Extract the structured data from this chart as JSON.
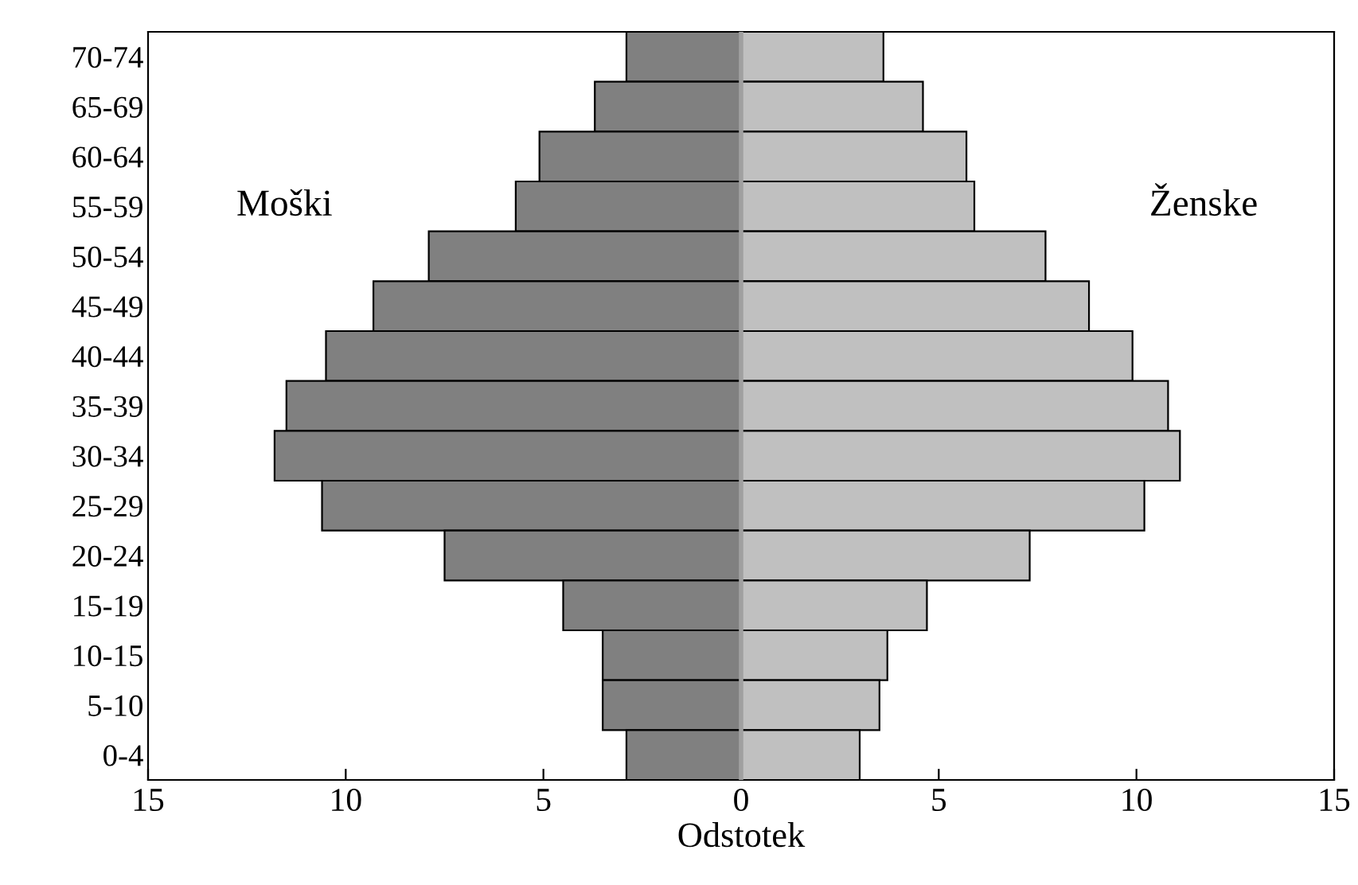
{
  "chart_data": {
    "type": "bar",
    "orientation": "horizontal",
    "stacked": true,
    "xlabel": "Odstotek",
    "categories": [
      "70-74",
      "65-69",
      "60-64",
      "55-59",
      "50-54",
      "45-49",
      "40-44",
      "35-39",
      "30-34",
      "25-29",
      "20-24",
      "15-19",
      "10-15",
      "5-10",
      "0-4"
    ],
    "series": [
      {
        "name": "Moški",
        "color": "#808080",
        "values": [
          -2.9,
          -3.7,
          -5.1,
          -5.7,
          -7.9,
          -9.3,
          -10.5,
          -11.5,
          -11.8,
          -10.6,
          -7.5,
          -4.5,
          -3.5,
          -3.5,
          -2.9
        ]
      },
      {
        "name": "Ženske",
        "color": "#c0c0c0",
        "values": [
          3.6,
          4.6,
          5.7,
          5.9,
          7.7,
          8.8,
          9.9,
          10.8,
          11.1,
          10.2,
          7.3,
          4.7,
          3.7,
          3.5,
          3.0
        ]
      }
    ],
    "xlim": [
      -15,
      15
    ],
    "xticks": [
      {
        "value": -15,
        "label": "15"
      },
      {
        "value": -10,
        "label": "10"
      },
      {
        "value": -5,
        "label": "5"
      },
      0,
      5,
      10,
      15
    ],
    "ref_lines": [
      {
        "axis": "x",
        "value": 0,
        "color": "#a0a0a0"
      }
    ],
    "grid": false,
    "legend": false
  }
}
